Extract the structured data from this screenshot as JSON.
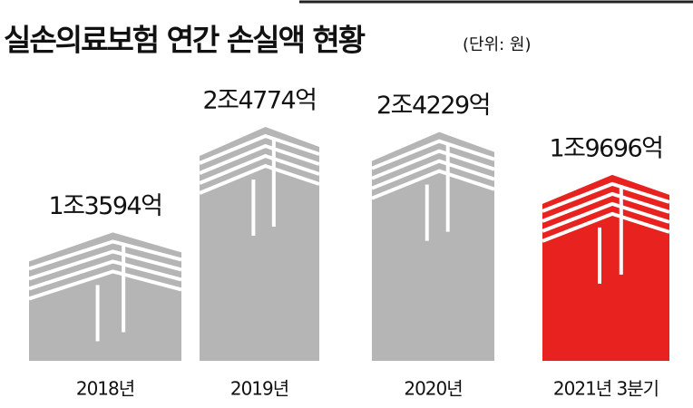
{
  "chart_data": {
    "type": "bar",
    "title": "실손의료보험 연간 손실액 현황",
    "subtitle": "(단위: 원)",
    "categories": [
      "2018년",
      "2019년",
      "2020년",
      "2021년 3분기"
    ],
    "values": [
      13594,
      24774,
      24229,
      19696
    ],
    "value_labels": [
      "1조3594억",
      "2조4774억",
      "2조4229억",
      "1조9696억"
    ],
    "colors": [
      "#b5b5b5",
      "#b5b5b5",
      "#b5b5b5",
      "#e8231f"
    ]
  }
}
